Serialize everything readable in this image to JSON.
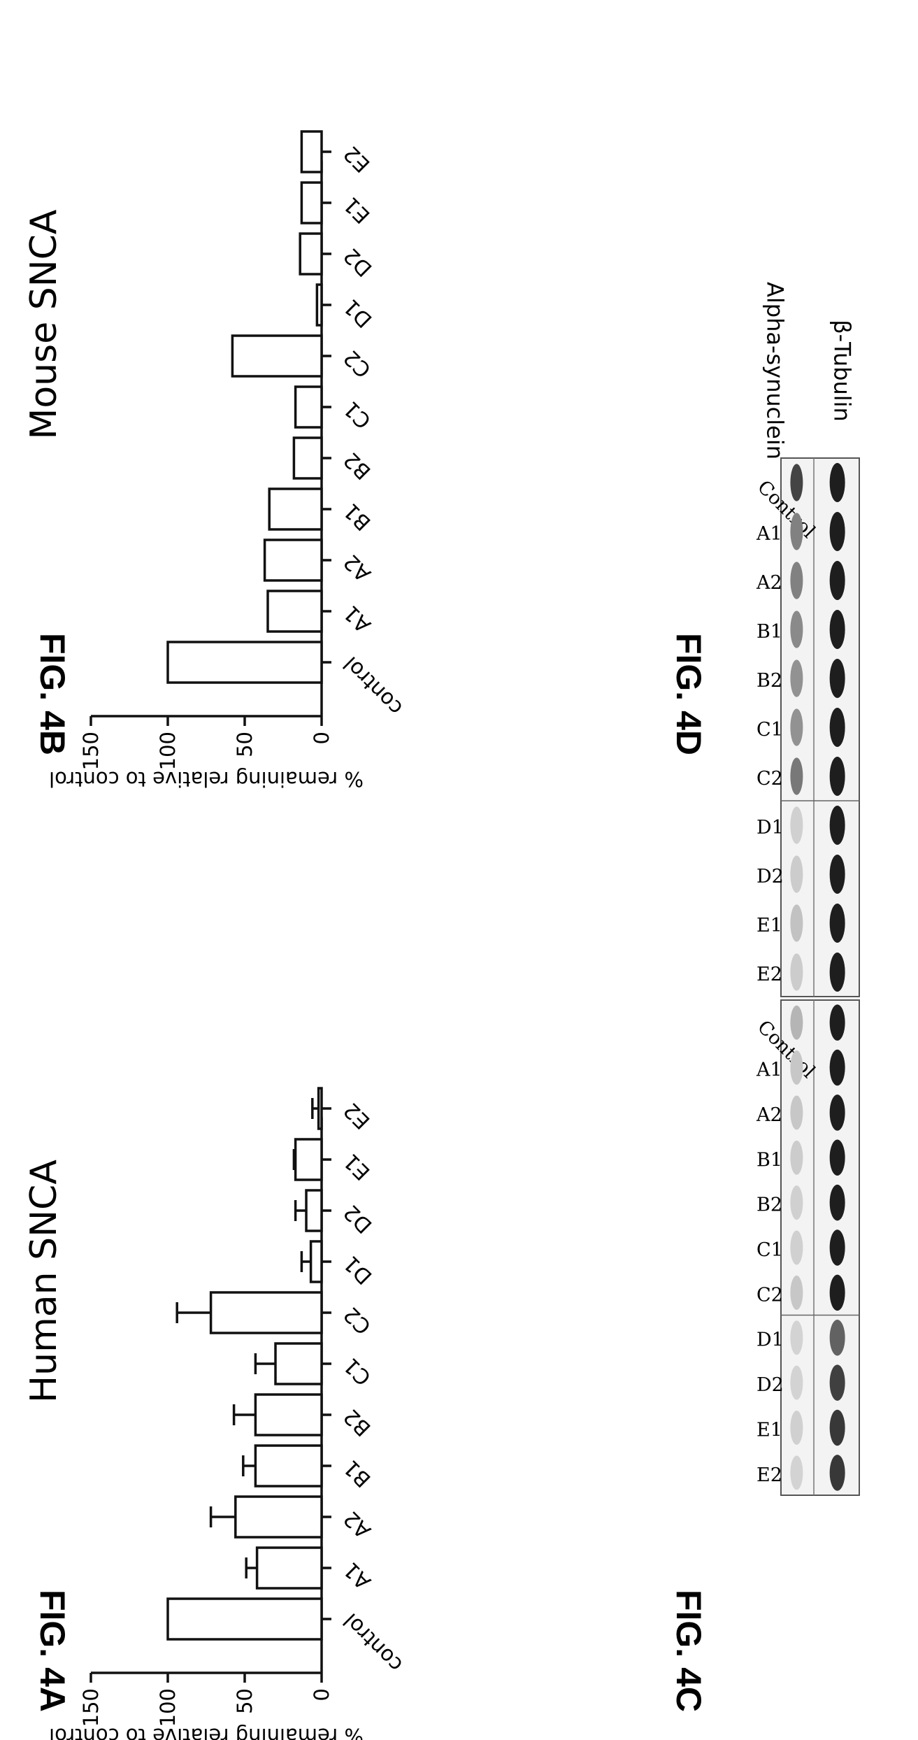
{
  "figures": {
    "a": "FIG. 4A",
    "b": "FIG. 4B",
    "c": "FIG. 4C",
    "d": "FIG. 4D"
  },
  "chart_data": [
    {
      "id": "A",
      "type": "bar",
      "title": "Human SNCA",
      "ylabel": "% remaining relative to control",
      "xlabel": "",
      "ylim": [
        0,
        150
      ],
      "yticks": [
        0,
        50,
        100,
        150
      ],
      "categories": [
        "control",
        "A1",
        "A2",
        "B1",
        "B2",
        "C1",
        "C2",
        "D1",
        "D2",
        "E1",
        "E2"
      ],
      "values": [
        100,
        42,
        56,
        43,
        43,
        30,
        72,
        7,
        10,
        17,
        2
      ],
      "errors": [
        0,
        7,
        16,
        8,
        14,
        13,
        22,
        6,
        7,
        1,
        4
      ],
      "grid": false
    },
    {
      "id": "B",
      "type": "bar",
      "title": "Mouse SNCA",
      "ylabel": "% remaining relative to control",
      "xlabel": "",
      "ylim": [
        0,
        150
      ],
      "yticks": [
        0,
        50,
        100,
        150
      ],
      "categories": [
        "control",
        "A1",
        "A2",
        "B1",
        "B2",
        "C1",
        "C2",
        "D1",
        "D2",
        "E1",
        "E2"
      ],
      "values": [
        100,
        35,
        37,
        34,
        18,
        17,
        58,
        3,
        14,
        13,
        13
      ],
      "errors": [
        0,
        0,
        0,
        0,
        0,
        0,
        0,
        0,
        0,
        0,
        0
      ],
      "grid": false
    }
  ],
  "blots": [
    {
      "id": "C",
      "lanes": [
        "Control",
        "A1",
        "A2",
        "B1",
        "B2",
        "C1",
        "C2",
        "D1",
        "D2",
        "E1",
        "E2"
      ],
      "rows": [
        "Alpha-synuclein",
        "β-Tubulin"
      ],
      "alpha_synuclein_intensity": [
        0.9,
        0.55,
        0.55,
        0.5,
        0.45,
        0.45,
        0.6,
        0.1,
        0.12,
        0.18,
        0.12
      ],
      "tubulin_intensity": [
        1,
        1,
        1,
        1,
        1,
        1,
        1,
        1,
        1,
        1,
        1
      ]
    },
    {
      "id": "D",
      "lanes": [
        "Control",
        "A1",
        "A2",
        "B1",
        "B2",
        "C1",
        "C2",
        "D1",
        "D2",
        "E1",
        "E2"
      ],
      "rows": [
        "",
        ""
      ],
      "alpha_synuclein_intensity": [
        0.25,
        0.15,
        0.15,
        0.12,
        0.1,
        0.1,
        0.15,
        0.08,
        0.08,
        0.1,
        0.08
      ],
      "tubulin_intensity": [
        1,
        1,
        1,
        1,
        1,
        1,
        1,
        0.6,
        0.8,
        0.85,
        0.85
      ]
    }
  ]
}
